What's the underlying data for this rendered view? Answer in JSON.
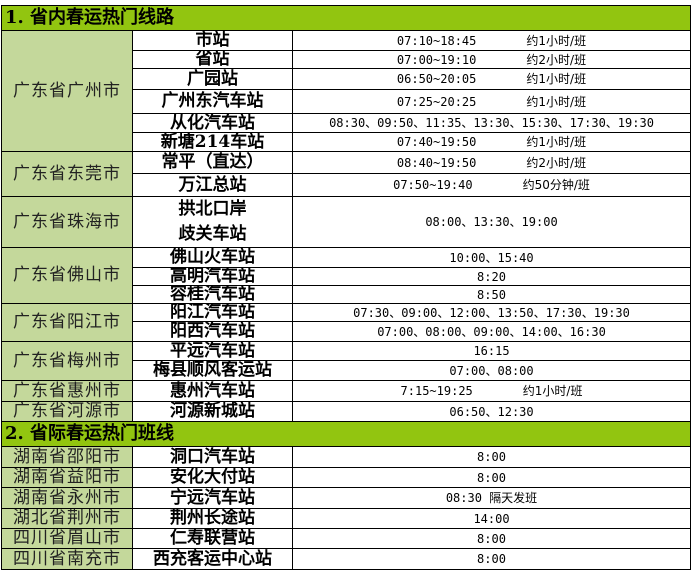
{
  "colors": {
    "section_header": "#92c510",
    "city_cell": "#c4d89b"
  },
  "sections": [
    {
      "title": "1. 省内春运热门线路",
      "groups": [
        {
          "city": "广东省广州市",
          "rows": [
            {
              "station": "市站",
              "time": "07:10~18:45",
              "freq": "约1小时/班",
              "h": 20
            },
            {
              "station": "省站",
              "time": "07:00~19:10",
              "freq": "约2小时/班",
              "h": 17
            },
            {
              "station": "广园站",
              "time": "06:50~20:05",
              "freq": "约1小时/班",
              "h": 21
            },
            {
              "station": "广州东汽车站",
              "time": "07:25~20:25",
              "freq": "约1小时/班",
              "h": 24
            },
            {
              "station": "从化汽车站",
              "time": "08:30、09:50、11:35、13:30、15:30、17:30、19:30",
              "h": 19
            },
            {
              "station": "新塘214车站",
              "time": "07:40~19:50",
              "freq": "约1小时/班",
              "h": 19
            }
          ]
        },
        {
          "city": "广东省东莞市",
          "rows": [
            {
              "station": "常平（直达）",
              "time": "08:40~19:50",
              "freq": "约2小时/班",
              "h": 22
            },
            {
              "station": "万江总站",
              "time": "07:50~19:40",
              "freq": "约50分钟/班",
              "h": 23
            }
          ]
        },
        {
          "city": "广东省珠海市",
          "rows": [
            {
              "station": "拱北口岸",
              "station2": "歧关车站",
              "time": "08:00、13:30、19:00",
              "h": 50
            }
          ]
        },
        {
          "city": "广东省佛山市",
          "rows": [
            {
              "station": "佛山火车站",
              "time": "10:00、15:40",
              "h": 20
            },
            {
              "station": "高明汽车站",
              "time": "8:20",
              "h": 17
            },
            {
              "station": "容桂汽车站",
              "time": "8:50",
              "h": 18
            }
          ]
        },
        {
          "city": "广东省阳江市",
          "rows": [
            {
              "station": "阳江汽车站",
              "time": "07:30、09:00、12:00、13:50、17:30、19:30",
              "h": 18
            },
            {
              "station": "阳西汽车站",
              "time": "07:00、08:00、09:00、14:00、16:30",
              "h": 20
            }
          ]
        },
        {
          "city": "广东省梅州市",
          "rows": [
            {
              "station": "平远汽车站",
              "time": "16:15",
              "h": 19
            },
            {
              "station": "梅县顺风客运站",
              "time": "07:00、08:00",
              "h": 20
            }
          ]
        },
        {
          "city": "广东省惠州市",
          "rows": [
            {
              "station": "惠州汽车站",
              "time": "7:15~19:25",
              "freq": "约1小时/班",
              "h": 21
            }
          ]
        },
        {
          "city": "广东省河源市",
          "rows": [
            {
              "station": "河源新城站",
              "time": "06:50、12:30",
              "h": 20
            }
          ]
        }
      ]
    },
    {
      "title": "2. 省际春运热门班线",
      "groups": [
        {
          "city": "湖南省邵阳市",
          "rows": [
            {
              "station": "洞口汽车站",
              "time": "8:00",
              "h": 21
            }
          ]
        },
        {
          "city": "湖南省益阳市",
          "rows": [
            {
              "station": "安化大付站",
              "time": "8:00",
              "h": 20
            }
          ]
        },
        {
          "city": "湖南省永州市",
          "rows": [
            {
              "station": "宁远汽车站",
              "time": "08:30 隔天发班",
              "h": 21
            }
          ]
        },
        {
          "city": "湖北省荆州市",
          "rows": [
            {
              "station": "荆州长途站",
              "time": "14:00",
              "h": 20
            }
          ]
        },
        {
          "city": "四川省眉山市",
          "rows": [
            {
              "station": "仁寿联营站",
              "time": "8:00",
              "h": 20
            }
          ]
        },
        {
          "city": "四川省南充市",
          "rows": [
            {
              "station": "西充客运中心站",
              "time": "8:00",
              "h": 21
            }
          ]
        }
      ]
    }
  ]
}
